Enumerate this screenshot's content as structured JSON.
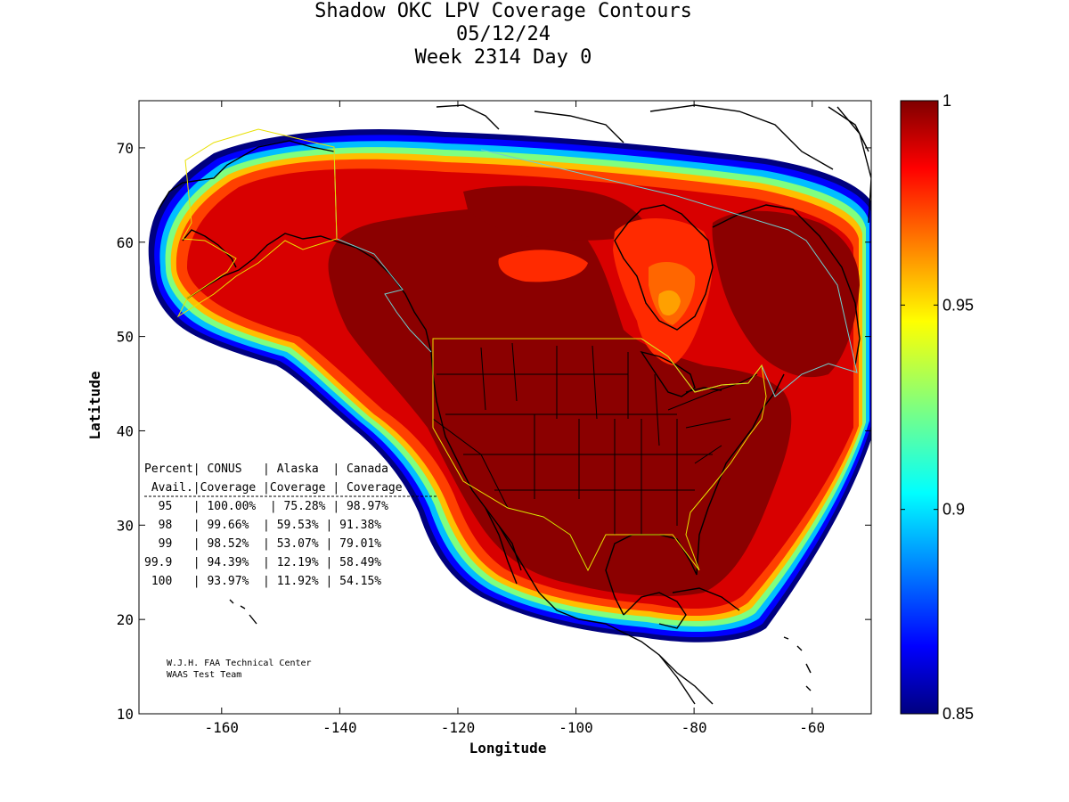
{
  "title": {
    "line1": "Shadow OKC LPV Coverage Contours",
    "line2": "05/12/24",
    "line3": "Week 2314 Day 0"
  },
  "axes": {
    "xlabel": "Longitude",
    "ylabel": "Latitude",
    "xlim": [
      -174,
      -50
    ],
    "ylim": [
      10,
      75
    ],
    "xticks": [
      "-160",
      "-140",
      "-120",
      "-100",
      "-80",
      "-60"
    ],
    "yticks": [
      "10",
      "20",
      "30",
      "40",
      "50",
      "60",
      "70"
    ]
  },
  "colorbar": {
    "min": 0.85,
    "max": 1,
    "labels": [
      "1",
      "0.95",
      "0.9",
      "0.85"
    ],
    "colormap": "jet"
  },
  "table": {
    "header1": "Percent| CONUS   | Alaska  | Canada",
    "header2": " Avail.|Coverage |Coverage | Coverage",
    "rows": [
      "  95   | 100.00%  | 75.28% | 98.97%",
      "  98   | 99.66%  | 59.53% | 91.38%",
      "  99   | 98.52%  | 53.07% | 79.01%",
      "99.9   | 94.39%  | 12.19% | 58.49%",
      " 100   | 93.97%  | 11.92% | 54.15%"
    ]
  },
  "credit": {
    "line1": "W.J.H. FAA Technical Center",
    "line2": "WAAS Test Team"
  },
  "chart_data": {
    "type": "heatmap",
    "title": "Shadow OKC LPV Coverage Contours",
    "xlabel": "Longitude",
    "ylabel": "Latitude",
    "xlim": [
      -174,
      -50
    ],
    "ylim": [
      10,
      75
    ],
    "clim": [
      0.85,
      1
    ],
    "table": {
      "columns": [
        "Percent Avail.",
        "CONUS Coverage",
        "Alaska Coverage",
        "Canada Coverage"
      ],
      "rows": [
        [
          "95",
          "100.00%",
          "75.28%",
          "98.97%"
        ],
        [
          "98",
          "99.66%",
          "59.53%",
          "91.38%"
        ],
        [
          "99",
          "98.52%",
          "53.07%",
          "79.01%"
        ],
        [
          "99.9",
          "94.39%",
          "12.19%",
          "58.49%"
        ],
        [
          "100",
          "93.97%",
          "11.92%",
          "54.15%"
        ]
      ]
    }
  }
}
